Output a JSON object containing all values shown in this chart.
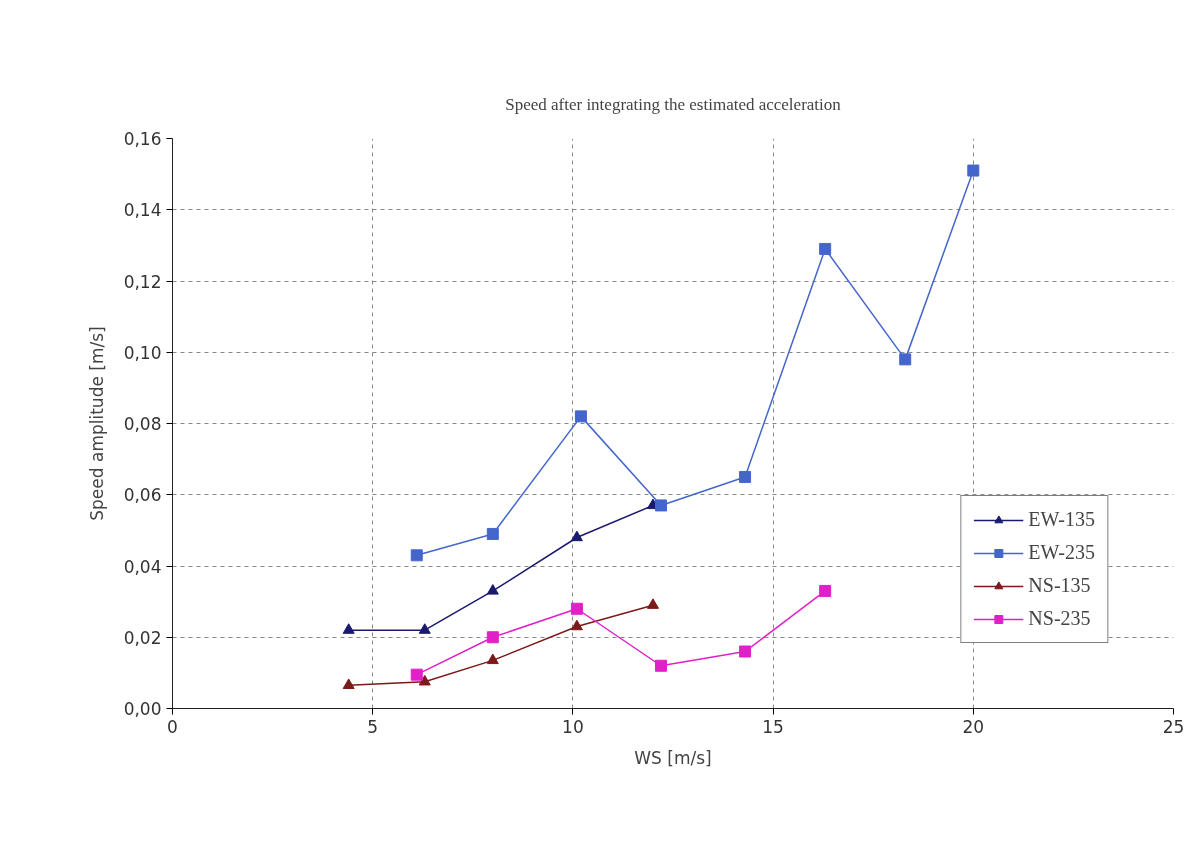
{
  "chart_data": {
    "type": "line",
    "title": "Speed after integrating the estimated acceleration",
    "xlabel": "WS [m/s]",
    "ylabel": "Speed amplitude [m/s]",
    "xlim": [
      0,
      25
    ],
    "xticks": [
      0,
      5,
      10,
      15,
      20,
      25
    ],
    "ylim": [
      0,
      0.16
    ],
    "yticks": [
      {
        "value": 0,
        "label": "0,00"
      },
      {
        "value": 0.02,
        "label": "0,02"
      },
      {
        "value": 0.04,
        "label": "0,04"
      },
      {
        "value": 0.06,
        "label": "0,06"
      },
      {
        "value": 0.08,
        "label": "0,08"
      },
      {
        "value": 0.1,
        "label": "0,10"
      },
      {
        "value": 0.12,
        "label": "0,12"
      },
      {
        "value": 0.14,
        "label": "0,14"
      },
      {
        "value": 0.16,
        "label": "0,16"
      }
    ],
    "grid": true,
    "legend": "bottom right",
    "line_style": "solid",
    "series": [
      {
        "name": "EW-135",
        "color": "#1a1a6e",
        "marker": "triangle",
        "x": [
          4.4,
          6.3,
          8.0,
          10.1,
          12.0
        ],
        "values": [
          0.022,
          0.022,
          0.033,
          0.048,
          0.057
        ]
      },
      {
        "name": "EW-235",
        "color": "#4466cc",
        "marker": "square",
        "x": [
          6.1,
          8.0,
          10.2,
          12.2,
          14.3,
          16.3,
          18.3,
          20.0
        ],
        "values": [
          0.043,
          0.049,
          0.082,
          0.057,
          0.065,
          0.129,
          0.098,
          0.151
        ]
      },
      {
        "name": "NS-135",
        "color": "#7a1a1a",
        "marker": "triangle",
        "x": [
          4.4,
          6.3,
          8.0,
          10.1,
          12.0
        ],
        "values": [
          0.0065,
          0.0075,
          0.0135,
          0.023,
          0.029
        ]
      },
      {
        "name": "NS-235",
        "color": "#e020c8",
        "marker": "square",
        "x": [
          6.1,
          8.0,
          10.1,
          12.2,
          14.3,
          16.3
        ],
        "values": [
          0.0095,
          0.02,
          0.028,
          0.012,
          0.016,
          0.033
        ]
      }
    ]
  }
}
